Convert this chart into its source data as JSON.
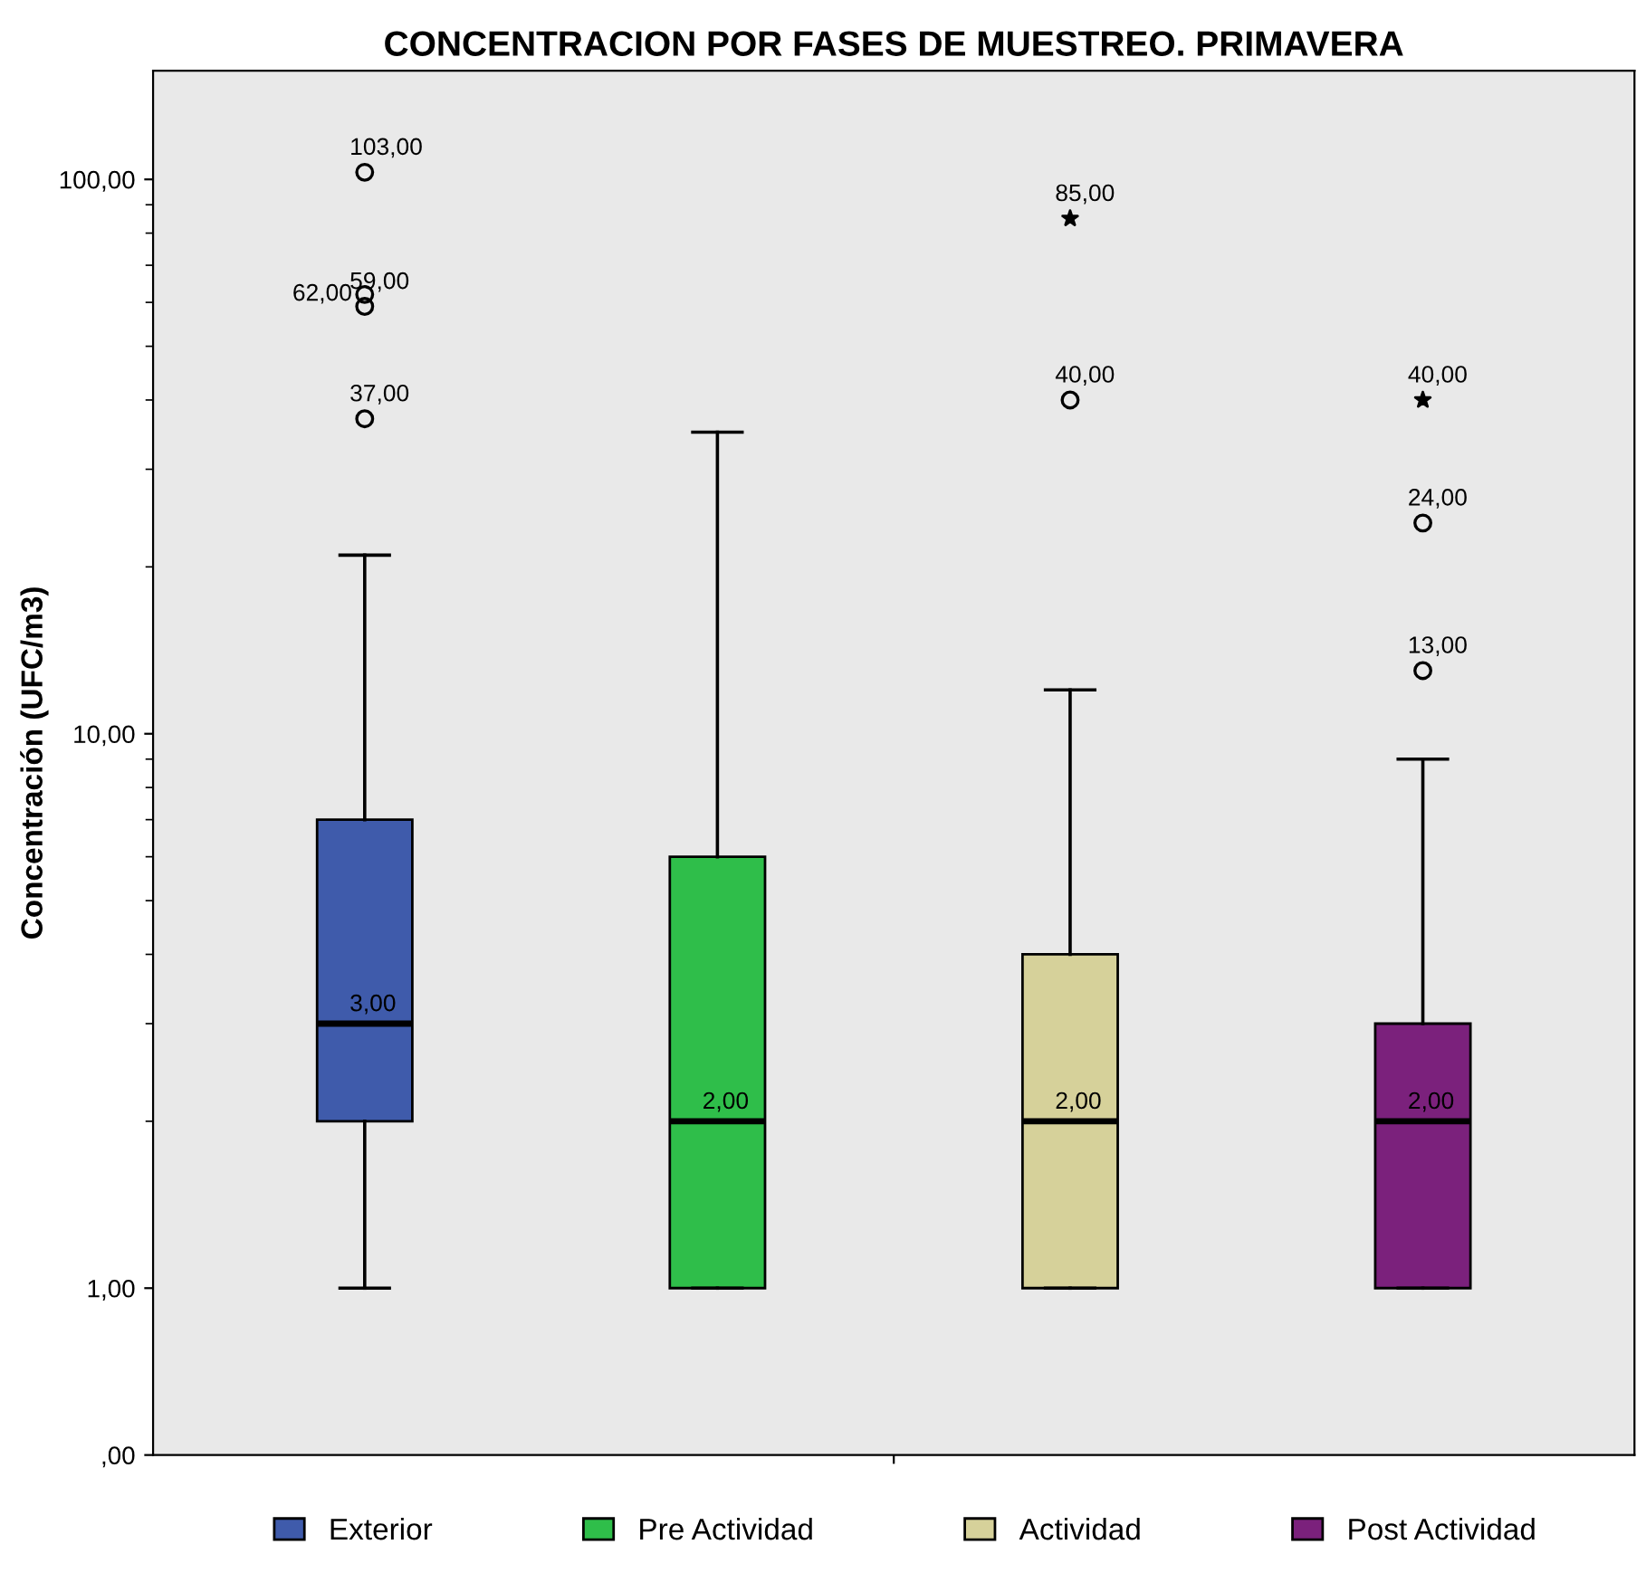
{
  "chart_data": {
    "type": "box",
    "title": "CONCENTRACION POR FASES DE MUESTREO. PRIMAVERA",
    "ylabel": "Concentración (UFC/m3)",
    "categories": [
      null,
      null,
      null,
      null
    ],
    "series": [
      {
        "name": "Exterior",
        "color": "#3f5bab",
        "boxes": [
          {
            "low": 1,
            "q1": 2,
            "median": 3,
            "q3": 7,
            "high": 21
          },
          null,
          null,
          null
        ]
      },
      {
        "name": "Pre Actividad",
        "color": "#2fbe4a",
        "boxes": [
          null,
          {
            "low": 1,
            "q1": 1,
            "median": 2,
            "q3": 6,
            "high": 35
          },
          null,
          null
        ]
      },
      {
        "name": "Actividad",
        "color": "#d6d19a",
        "boxes": [
          null,
          null,
          {
            "low": 1,
            "q1": 1,
            "median": 2,
            "q3": 4,
            "high": 12
          },
          null
        ]
      },
      {
        "name": "Post Actividad",
        "color": "#7b217c",
        "boxes": [
          null,
          null,
          null,
          {
            "low": 1,
            "q1": 1,
            "median": 2,
            "q3": 3,
            "high": 9
          }
        ]
      },
      {
        "type": "scatter",
        "marker": "circle",
        "color": "#000000",
        "values": [
          37,
          null,
          40,
          13
        ],
        "value_labels": [
          "37,00",
          null,
          "40,00",
          "13,00"
        ]
      },
      {
        "type": "scatter",
        "marker": "circle",
        "color": "#000000",
        "values": [
          59,
          null,
          null,
          24
        ],
        "value_labels": [
          "59,00",
          null,
          null,
          "24,00"
        ]
      },
      {
        "type": "scatter",
        "marker": "circle",
        "color": "#000000",
        "values": [
          62,
          null,
          null,
          null
        ],
        "value_labels": [
          "62,00",
          null,
          null,
          null
        ]
      },
      {
        "type": "scatter",
        "marker": "circle",
        "color": "#000000",
        "values": [
          103,
          null,
          null,
          null
        ],
        "value_labels": [
          "103,00",
          null,
          null,
          null
        ]
      },
      {
        "type": "scatter",
        "marker": "star",
        "color": "#000000",
        "values": [
          null,
          null,
          85,
          40
        ],
        "value_labels": [
          null,
          null,
          "85,00",
          "40,00"
        ]
      }
    ],
    "annotations": [
      {
        "text": "3,00",
        "y": 3
      },
      {
        "text": "2,00",
        "y": 2
      },
      {
        "text": "2,00",
        "y": 2
      },
      {
        "text": "2,00",
        "y": 2
      }
    ],
    "log": "y",
    "ylim": [
      0.5,
      157
    ],
    "yticks": [
      {
        "value": 0.5,
        "label": ",00"
      },
      {
        "value": 1,
        "label": "1,00"
      },
      {
        "value": 10,
        "label": "10,00"
      },
      {
        "value": 100,
        "label": "100,00"
      }
    ],
    "tick_labels": "y",
    "grid": false,
    "legend": "bottom"
  }
}
